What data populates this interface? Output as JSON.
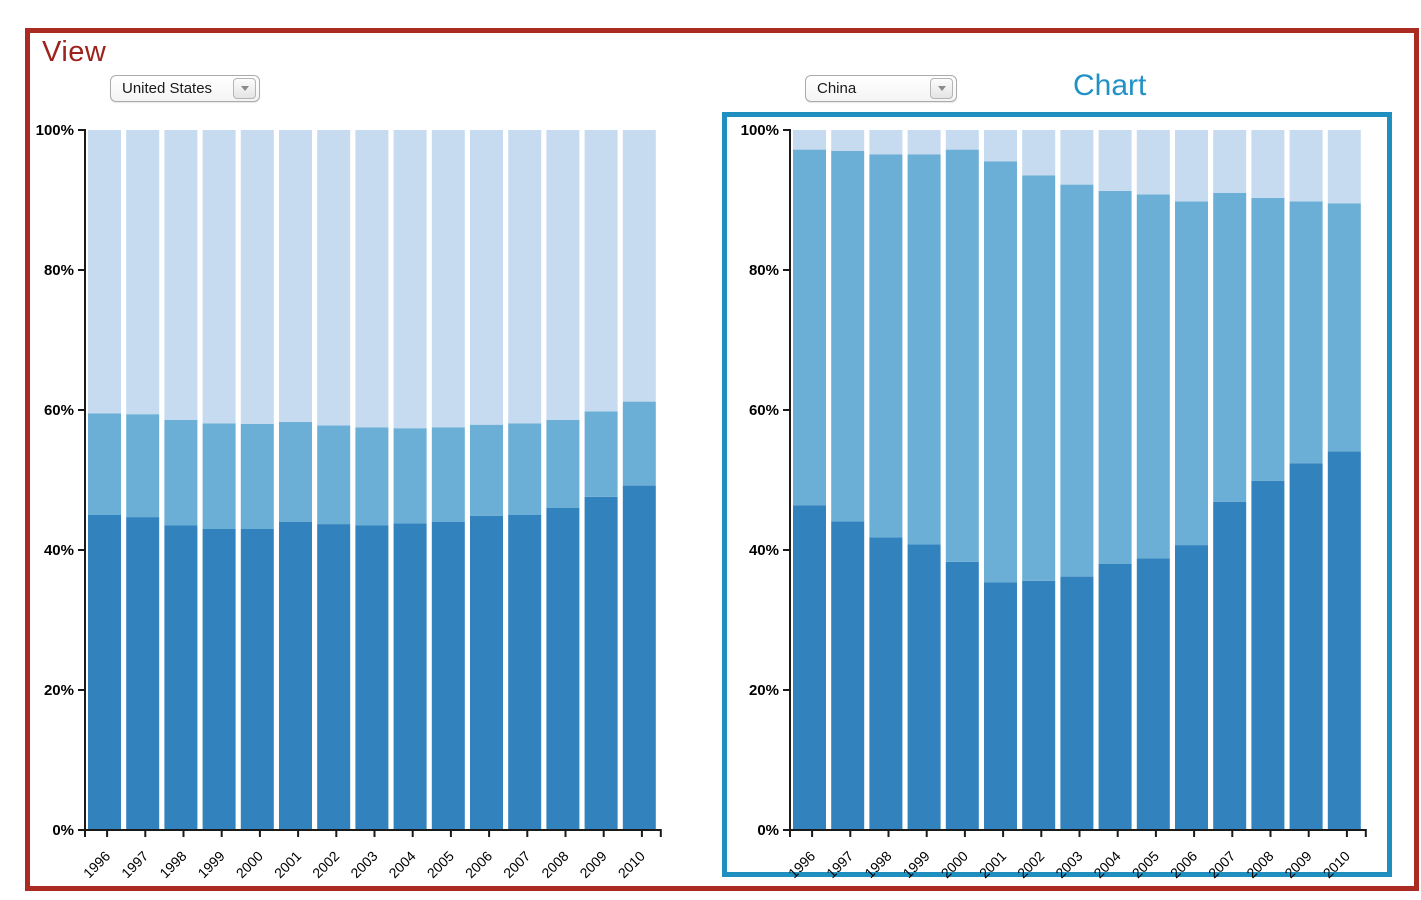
{
  "view": {
    "title": "View",
    "accent_color": "#ab2a22"
  },
  "chart_panel": {
    "title": "Chart",
    "accent_color": "#1f8fbf"
  },
  "selectors": {
    "left": {
      "value": "United States"
    },
    "right": {
      "value": "China"
    }
  },
  "palette": {
    "bar_dark": "#3182bd",
    "bar_medium": "#6baed6",
    "bar_light": "#c6dbef",
    "axis": "#1a1a1a"
  },
  "chart_data": [
    {
      "type": "bar",
      "variant": "stacked-percent",
      "title": "United States",
      "xlabel": "",
      "ylabel": "",
      "ylim": [
        0,
        100
      ],
      "grid": false,
      "legend": false,
      "categories": [
        "1996",
        "1997",
        "1998",
        "1999",
        "2000",
        "2001",
        "2002",
        "2003",
        "2004",
        "2005",
        "2006",
        "2007",
        "2008",
        "2009",
        "2010"
      ],
      "yticks": [
        {
          "v": 0,
          "label": "0%"
        },
        {
          "v": 20,
          "label": "20%"
        },
        {
          "v": 40,
          "label": "40%"
        },
        {
          "v": 60,
          "label": "60%"
        },
        {
          "v": 80,
          "label": "80%"
        },
        {
          "v": 100,
          "label": "100%"
        }
      ],
      "series": [
        {
          "name": "dark-blue-bottom",
          "color": "#3182bd",
          "values": [
            45.0,
            44.7,
            43.5,
            43.0,
            43.0,
            44.0,
            43.7,
            43.5,
            43.8,
            44.0,
            44.9,
            45.0,
            46.0,
            47.6,
            49.2
          ]
        },
        {
          "name": "medium-blue-middle",
          "color": "#6baed6",
          "values": [
            14.5,
            14.7,
            15.1,
            15.1,
            15.0,
            14.3,
            14.1,
            14.0,
            13.6,
            13.5,
            13.0,
            13.1,
            12.6,
            12.2,
            12.0
          ]
        },
        {
          "name": "light-blue-top",
          "color": "#c6dbef",
          "values": [
            40.5,
            40.6,
            41.4,
            41.9,
            42.0,
            41.7,
            42.2,
            42.5,
            42.6,
            42.5,
            42.1,
            41.9,
            41.4,
            40.2,
            38.8
          ]
        }
      ]
    },
    {
      "type": "bar",
      "variant": "stacked-percent",
      "title": "China",
      "xlabel": "",
      "ylabel": "",
      "ylim": [
        0,
        100
      ],
      "grid": false,
      "legend": false,
      "categories": [
        "1996",
        "1997",
        "1998",
        "1999",
        "2000",
        "2001",
        "2002",
        "2003",
        "2004",
        "2005",
        "2006",
        "2007",
        "2008",
        "2009",
        "2010"
      ],
      "yticks": [
        {
          "v": 0,
          "label": "0%"
        },
        {
          "v": 20,
          "label": "20%"
        },
        {
          "v": 40,
          "label": "40%"
        },
        {
          "v": 60,
          "label": "60%"
        },
        {
          "v": 80,
          "label": "80%"
        },
        {
          "v": 100,
          "label": "100%"
        }
      ],
      "series": [
        {
          "name": "dark-blue-bottom",
          "color": "#3182bd",
          "values": [
            46.4,
            44.1,
            41.8,
            40.8,
            38.3,
            35.4,
            35.6,
            36.2,
            38.0,
            38.8,
            40.7,
            46.9,
            49.9,
            52.4,
            54.1
          ]
        },
        {
          "name": "medium-blue-middle",
          "color": "#6baed6",
          "values": [
            50.8,
            52.9,
            54.7,
            55.7,
            58.9,
            60.1,
            57.9,
            56.0,
            53.3,
            52.0,
            49.1,
            44.1,
            40.4,
            37.4,
            35.4
          ]
        },
        {
          "name": "light-blue-top",
          "color": "#c6dbef",
          "values": [
            2.8,
            3.0,
            3.5,
            3.5,
            2.8,
            4.5,
            6.5,
            7.8,
            8.7,
            9.2,
            10.2,
            9.0,
            9.7,
            10.2,
            10.5
          ]
        }
      ]
    }
  ]
}
